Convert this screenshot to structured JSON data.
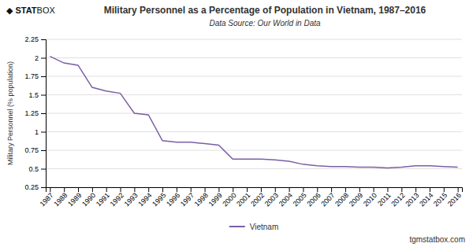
{
  "chart_data": {
    "type": "line",
    "title": "Military Personnel as a Percentage of Population in Vietnam, 1987–2016",
    "subtitle": "Data Source: Our World in Data",
    "ylabel": "Military Personnel (% population)",
    "annotations": [
      "◆",
      "STAT",
      "BOX",
      "tgmstatbox.com"
    ],
    "x": [
      1987,
      1988,
      1989,
      1990,
      1991,
      1992,
      1993,
      1994,
      1995,
      1996,
      1997,
      1998,
      1999,
      2000,
      2001,
      2002,
      2003,
      2004,
      2005,
      2006,
      2007,
      2008,
      2009,
      2010,
      2011,
      2012,
      2013,
      2014,
      2015,
      2016
    ],
    "series": [
      {
        "name": "Vietnam",
        "color": "#7B5EA7",
        "values": [
          2.02,
          1.93,
          1.9,
          1.6,
          1.55,
          1.52,
          1.25,
          1.23,
          0.88,
          0.86,
          0.86,
          0.84,
          0.82,
          0.63,
          0.63,
          0.63,
          0.62,
          0.6,
          0.56,
          0.54,
          0.53,
          0.53,
          0.52,
          0.52,
          0.51,
          0.52,
          0.54,
          0.54,
          0.53,
          0.52
        ]
      }
    ],
    "xlim": [
      1986.7,
      2016.3
    ],
    "xticks": [
      1987,
      1988,
      1989,
      1990,
      1991,
      1992,
      1993,
      1994,
      1995,
      1996,
      1997,
      1998,
      1999,
      2000,
      2001,
      2002,
      2003,
      2004,
      2005,
      2006,
      2007,
      2008,
      2009,
      2010,
      2011,
      2012,
      2013,
      2014,
      2015,
      2016
    ],
    "ylim": [
      0.25,
      2.25
    ],
    "yticks": [
      0.25,
      0.5,
      0.75,
      1,
      1.25,
      1.5,
      1.75,
      2,
      2.25
    ],
    "grid": "y",
    "legend": "bottom"
  }
}
